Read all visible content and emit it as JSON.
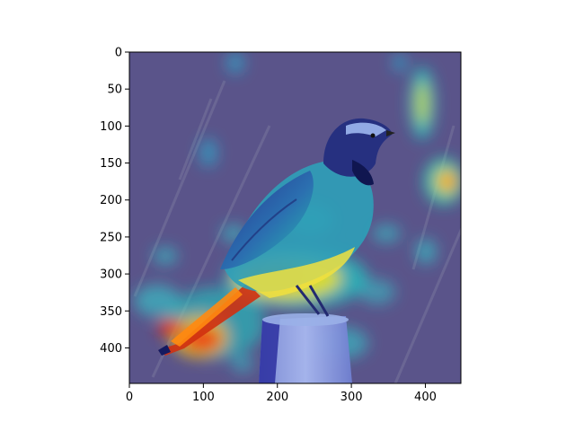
{
  "figure": {
    "type": "image-heatmap-overlay",
    "subject": "bird",
    "colormap": "jet",
    "x_axis": {
      "range": [
        0,
        448
      ],
      "ticks": [
        0,
        100,
        200,
        300,
        400
      ]
    },
    "y_axis": {
      "range": [
        0,
        448
      ],
      "inverted": true,
      "ticks": [
        0,
        50,
        100,
        150,
        200,
        250,
        300,
        350,
        400
      ]
    },
    "colors": {
      "background": "#6a6678",
      "overlay_low": "#3b3fb0",
      "overlay_mid": "#19c4d6",
      "overlay_high": "#ffe000",
      "overlay_peak": "#e01818"
    }
  }
}
